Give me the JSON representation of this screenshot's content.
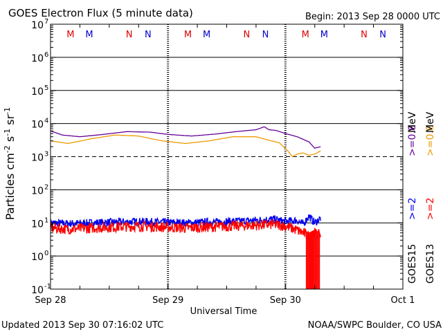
{
  "chart_data": {
    "type": "line",
    "title": "GOES Electron Flux (5 minute data)",
    "begin_label": "Begin: 2013 Sep 28 0000 UTC",
    "xlabel": "Universal Time",
    "ylabel_parts": [
      "Particles cm",
      "-2",
      "s",
      "-1",
      "sr",
      "-1"
    ],
    "updated": "Updated 2013 Sep 30 07:16:02 UTC",
    "credit": "NOAA/SWPC Boulder, CO USA",
    "y_scale": "log",
    "ylim_exponents": [
      -1,
      7
    ],
    "y_ticks": [
      {
        "exp": -1,
        "base": "10",
        "sup": "-1"
      },
      {
        "exp": 0,
        "base": "10",
        "sup": "0"
      },
      {
        "exp": 1,
        "base": "10",
        "sup": "1"
      },
      {
        "exp": 2,
        "base": "10",
        "sup": "2"
      },
      {
        "exp": 3,
        "base": "10",
        "sup": "3"
      },
      {
        "exp": 4,
        "base": "10",
        "sup": "4"
      },
      {
        "exp": 5,
        "base": "10",
        "sup": "5"
      },
      {
        "exp": 6,
        "base": "10",
        "sup": "6"
      },
      {
        "exp": 7,
        "base": "10",
        "sup": "7"
      }
    ],
    "xlim_days": [
      0,
      3
    ],
    "x_ticks": [
      {
        "day": 0,
        "label": "Sep 28"
      },
      {
        "day": 1,
        "label": "Sep 29"
      },
      {
        "day": 2,
        "label": "Sep 30"
      },
      {
        "day": 3,
        "label": "Oct 1"
      }
    ],
    "threshold_exponent": 3,
    "local_time_markers": [
      {
        "day": 0.17,
        "label": "M",
        "color": "#dd0000"
      },
      {
        "day": 0.33,
        "label": "M",
        "color": "#0000cc"
      },
      {
        "day": 0.67,
        "label": "N",
        "color": "#dd0000"
      },
      {
        "day": 0.83,
        "label": "N",
        "color": "#0000cc"
      },
      {
        "day": 1.17,
        "label": "M",
        "color": "#dd0000"
      },
      {
        "day": 1.33,
        "label": "M",
        "color": "#0000cc"
      },
      {
        "day": 1.67,
        "label": "N",
        "color": "#dd0000"
      },
      {
        "day": 1.83,
        "label": "N",
        "color": "#0000cc"
      },
      {
        "day": 2.17,
        "label": "M",
        "color": "#dd0000"
      },
      {
        "day": 2.33,
        "label": "M",
        "color": "#0000cc"
      },
      {
        "day": 2.67,
        "label": "N",
        "color": "#dd0000"
      },
      {
        "day": 2.83,
        "label": "N",
        "color": "#0000cc"
      }
    ],
    "legend": {
      "satellites": [
        {
          "name": "GOES15",
          "ge2": ">=2",
          "ge08": ">=0.8"
        },
        {
          "name": "GOES13",
          "ge2": ">=2",
          "ge08": ">=0.8"
        }
      ],
      "unit": "MeV"
    },
    "series": [
      {
        "name": "GOES15 >=0.8 MeV",
        "color": "#660099",
        "days": [
          0.0,
          0.1,
          0.25,
          0.45,
          0.65,
          0.85,
          1.0,
          1.2,
          1.4,
          1.6,
          1.75,
          1.82,
          1.86,
          1.92,
          2.0,
          2.1,
          2.2,
          2.25,
          2.3
        ],
        "values": [
          6000,
          4500,
          4000,
          4700,
          5700,
          5500,
          4700,
          4200,
          4800,
          5800,
          6500,
          8000,
          6500,
          6200,
          5000,
          4000,
          2800,
          1800,
          2000
        ]
      },
      {
        "name": "GOES13 >=0.8 MeV",
        "color": "#ee9900",
        "days": [
          0.0,
          0.15,
          0.35,
          0.55,
          0.75,
          0.95,
          1.15,
          1.35,
          1.55,
          1.75,
          1.85,
          1.95,
          2.02,
          2.06,
          2.1,
          2.15,
          2.2,
          2.25,
          2.3
        ],
        "values": [
          3000,
          2500,
          3500,
          4500,
          4200,
          3000,
          2500,
          3000,
          4000,
          4000,
          3200,
          2600,
          1500,
          1000,
          1200,
          1300,
          1100,
          1200,
          1500
        ]
      },
      {
        "name": "GOES15 >=2 MeV",
        "color": "#0000ee",
        "days": [
          0.0,
          0.15,
          0.35,
          0.55,
          0.75,
          0.95,
          1.15,
          1.35,
          1.55,
          1.75,
          1.9,
          2.0,
          2.1,
          2.15,
          2.2,
          2.25,
          2.3
        ],
        "values": [
          10,
          9.5,
          10,
          10.5,
          11,
          10.5,
          10,
          10.5,
          11,
          12,
          13,
          11,
          12,
          9,
          16,
          10,
          14
        ],
        "noise": 0.12
      },
      {
        "name": "GOES13 >=2 MeV",
        "color": "#ff0000",
        "days": [
          0.0,
          0.15,
          0.35,
          0.55,
          0.75,
          0.95,
          1.15,
          1.35,
          1.55,
          1.75,
          1.9,
          2.0,
          2.1,
          2.15,
          2.2,
          2.25,
          2.3
        ],
        "values": [
          7,
          6.5,
          7,
          7.5,
          8,
          7.5,
          7,
          7.5,
          8,
          8.5,
          9,
          8,
          6,
          5,
          4,
          5,
          4
        ],
        "noise": 0.16,
        "dropouts": [
          {
            "from": 2.18,
            "to": 2.3,
            "value": 0.1
          }
        ]
      }
    ]
  }
}
